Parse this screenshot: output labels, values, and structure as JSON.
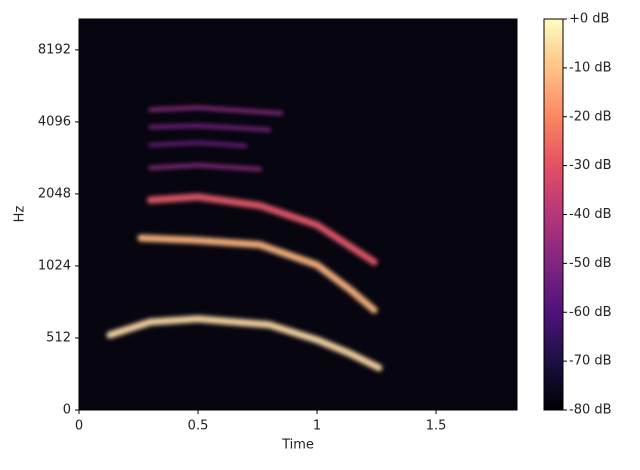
{
  "chart_data": {
    "type": "spectrogram",
    "xlabel": "Time",
    "ylabel": "Hz",
    "xlim": [
      0,
      1.84
    ],
    "xticks": [
      0,
      {
        "value": 0.5,
        "label": "0.5"
      },
      1,
      {
        "value": 1.5,
        "label": "1.5"
      }
    ],
    "ylim": [
      0,
      11025
    ],
    "yscale": "symlog",
    "yticks": [
      0,
      512,
      1024,
      2048,
      4096,
      8192
    ],
    "clim": [
      -80,
      0
    ],
    "cticks": [
      {
        "value": 0,
        "label": "+0 dB"
      },
      {
        "value": -10,
        "label": "-10 dB"
      },
      {
        "value": -20,
        "label": "-20 dB"
      },
      {
        "value": -30,
        "label": "-30 dB"
      },
      {
        "value": -40,
        "label": "-40 dB"
      },
      {
        "value": -50,
        "label": "-50 dB"
      },
      {
        "value": -60,
        "label": "-60 dB"
      },
      {
        "value": -70,
        "label": "-70 dB"
      },
      {
        "value": -80,
        "label": "-80 dB"
      }
    ],
    "colormap": [
      "#000004",
      "#1c1044",
      "#4f127b",
      "#812581",
      "#b5367a",
      "#e55064",
      "#fb8761",
      "#fec287",
      "#fcfdbf"
    ],
    "background": "#07050f",
    "series": [
      {
        "color": "#fcd9a4",
        "x": [
          0.13,
          0.3,
          0.5,
          0.8,
          1.0,
          1.14,
          1.26
        ],
        "values": [
          527,
          597,
          615,
          581,
          498,
          400,
          300
        ]
      },
      {
        "color": "#fdb57e",
        "x": [
          0.26,
          0.5,
          0.76,
          1.0,
          1.14,
          1.24
        ],
        "values": [
          1340,
          1310,
          1255,
          1034,
          813,
          670
        ]
      },
      {
        "color": "#e5586a",
        "x": [
          0.3,
          0.5,
          0.76,
          1.0,
          1.24
        ],
        "values": [
          1930,
          1990,
          1830,
          1520,
          1064
        ]
      },
      {
        "color": "#8c2a80",
        "x": [
          0.3,
          0.5,
          0.76
        ],
        "values": [
          2630,
          2700,
          2600
        ]
      },
      {
        "color": "#6b1d80",
        "x": [
          0.3,
          0.5,
          0.7
        ],
        "values": [
          3280,
          3350,
          3250
        ]
      },
      {
        "color": "#7a2282",
        "x": [
          0.3,
          0.5,
          0.8
        ],
        "values": [
          3900,
          3950,
          3800
        ]
      },
      {
        "color": "#8a2a82",
        "x": [
          0.3,
          0.5,
          0.85
        ],
        "values": [
          4600,
          4700,
          4450
        ]
      }
    ]
  }
}
